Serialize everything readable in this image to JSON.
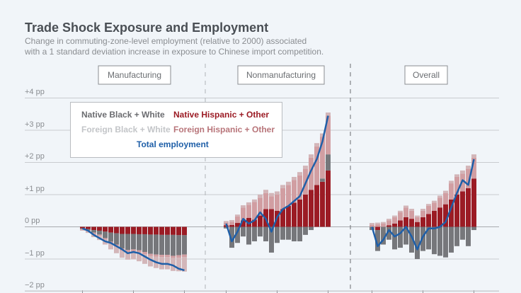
{
  "header": {
    "title": "Trade Shock Exposure and Employment",
    "subtitle_line1": "Change in commuting-zone-level employment (relative to 2000) associated",
    "subtitle_line2": "with a 1 standard deviation increase in exposure to Chinese import competition."
  },
  "colors": {
    "native_bw": "#76777b",
    "native_hisp": "#9b1b24",
    "foreign_bw": "#d3b6b9",
    "foreign_hisp": "#d19ea2",
    "total": "#1f5fa8",
    "grid": "#c9ccd0"
  },
  "chart_data": {
    "type": "bar",
    "title": "Trade Shock Exposure and Employment",
    "subtitle": "Change in commuting-zone-level employment (relative to 2000) associated with a 1 standard deviation increase in exposure to Chinese import competition.",
    "ylabel": "",
    "ylim": [
      -2,
      4
    ],
    "yticks": [
      "+4 pp",
      "+3 pp",
      "+2 pp",
      "+1 pp",
      "0 pp",
      "−1 pp",
      "−2 pp"
    ],
    "ytick_values": [
      4,
      3,
      2,
      1,
      0,
      -1,
      -2
    ],
    "grid": true,
    "legend": {
      "placement": "top-left",
      "entries": [
        "Native Black + White",
        "Native Hispanic + Other",
        "Foreign Black + White",
        "Foreign Hispanic + Other",
        "Total employment"
      ]
    },
    "stacked": true,
    "panels": [
      {
        "name": "Manufacturing",
        "series": [
          {
            "name": "Native Hispanic + Other",
            "values": [
              -0.05,
              -0.07,
              -0.1,
              -0.12,
              -0.15,
              -0.18,
              -0.2,
              -0.22,
              -0.22,
              -0.22,
              -0.23,
              -0.23,
              -0.24,
              -0.24,
              -0.25,
              -0.25,
              -0.25,
              -0.26,
              -0.26
            ]
          },
          {
            "name": "Native Black + White",
            "values": [
              -0.02,
              -0.04,
              -0.08,
              -0.12,
              -0.2,
              -0.28,
              -0.35,
              -0.45,
              -0.5,
              -0.48,
              -0.5,
              -0.55,
              -0.6,
              -0.62,
              -0.62,
              -0.62,
              -0.65,
              -0.62,
              -0.6
            ]
          },
          {
            "name": "Foreign Black + White",
            "values": [
              -0.03,
              -0.05,
              -0.1,
              -0.12,
              -0.15,
              -0.18,
              -0.2,
              -0.22,
              -0.24,
              -0.25,
              -0.28,
              -0.3,
              -0.32,
              -0.35,
              -0.38,
              -0.38,
              -0.4,
              -0.42,
              -0.45
            ]
          },
          {
            "name": "Foreign Hispanic + Other",
            "values": [
              -0.02,
              -0.03,
              -0.04,
              -0.05,
              -0.05,
              -0.06,
              -0.07,
              -0.07,
              -0.06,
              -0.06,
              -0.06,
              -0.07,
              -0.07,
              -0.07,
              -0.07,
              -0.07,
              -0.07,
              -0.08,
              -0.08
            ]
          },
          {
            "name": "Total employment",
            "values": [
              -0.05,
              -0.12,
              -0.25,
              -0.35,
              -0.45,
              -0.5,
              -0.6,
              -0.7,
              -0.82,
              -0.78,
              -0.82,
              -0.92,
              -1.02,
              -1.1,
              -1.15,
              -1.15,
              -1.2,
              -1.3,
              -1.35
            ]
          }
        ]
      },
      {
        "name": "Nonmanufacturing",
        "series": [
          {
            "name": "Native Hispanic + Other",
            "values": [
              0.05,
              0.06,
              0.12,
              0.2,
              0.28,
              0.22,
              0.35,
              0.55,
              0.55,
              0.5,
              0.55,
              0.65,
              0.75,
              0.85,
              1.0,
              1.15,
              1.3,
              1.4,
              1.75
            ]
          },
          {
            "name": "Native Black + White",
            "values": [
              -0.05,
              -0.65,
              -0.5,
              -0.3,
              -0.55,
              -0.45,
              -0.3,
              -0.45,
              -0.8,
              -0.5,
              -0.4,
              -0.4,
              -0.45,
              -0.45,
              -0.25,
              -0.1,
              0.0,
              0.1,
              0.5
            ]
          },
          {
            "name": "Foreign Black + White",
            "values": [
              0.05,
              0.05,
              0.06,
              0.07,
              0.08,
              0.08,
              0.1,
              0.1,
              0.1,
              0.1,
              0.1,
              0.1,
              0.1,
              0.1,
              0.1,
              0.1,
              0.1,
              0.1,
              0.1
            ]
          },
          {
            "name": "Foreign Hispanic + Other",
            "values": [
              0.08,
              0.1,
              0.2,
              0.4,
              0.4,
              0.55,
              0.55,
              0.5,
              0.4,
              0.5,
              0.65,
              0.65,
              0.7,
              0.75,
              0.8,
              1.0,
              1.2,
              1.3,
              1.2
            ]
          },
          {
            "name": "Total employment",
            "values": [
              0.1,
              -0.45,
              -0.15,
              0.25,
              0.1,
              0.2,
              0.45,
              0.25,
              -0.15,
              0.3,
              0.55,
              0.65,
              0.8,
              0.95,
              1.35,
              1.75,
              2.1,
              2.65,
              3.45
            ]
          }
        ]
      },
      {
        "name": "Overall",
        "series": [
          {
            "name": "Native Hispanic + Other",
            "values": [
              0.0,
              -0.1,
              0.0,
              0.05,
              0.1,
              0.2,
              0.3,
              0.25,
              0.15,
              0.3,
              0.4,
              0.5,
              0.6,
              0.7,
              0.85,
              1.0,
              1.1,
              1.2,
              1.5
            ]
          },
          {
            "name": "Native Black + White",
            "values": [
              -0.1,
              -0.65,
              -0.55,
              -0.4,
              -0.7,
              -0.65,
              -0.55,
              -0.8,
              -1.0,
              -0.75,
              -0.7,
              -0.85,
              -0.9,
              -0.95,
              -0.8,
              -0.6,
              -0.4,
              -0.6,
              -0.1
            ]
          },
          {
            "name": "Foreign Black + White",
            "values": [
              0.05,
              0.05,
              0.05,
              0.05,
              0.05,
              0.05,
              0.06,
              0.06,
              0.05,
              0.06,
              0.06,
              0.06,
              0.07,
              0.07,
              0.08,
              0.08,
              0.1,
              0.1,
              0.1
            ]
          },
          {
            "name": "Foreign Hispanic + Other",
            "values": [
              0.07,
              0.08,
              0.1,
              0.15,
              0.2,
              0.25,
              0.3,
              0.25,
              0.15,
              0.2,
              0.25,
              0.25,
              0.3,
              0.35,
              0.5,
              0.55,
              0.55,
              0.6,
              0.65
            ]
          },
          {
            "name": "Total employment",
            "values": [
              0.0,
              -0.6,
              -0.4,
              -0.1,
              -0.3,
              -0.2,
              0.0,
              -0.3,
              -0.7,
              -0.3,
              -0.05,
              -0.05,
              0.0,
              0.15,
              0.6,
              1.05,
              1.45,
              1.3,
              2.1
            ]
          }
        ]
      }
    ]
  }
}
